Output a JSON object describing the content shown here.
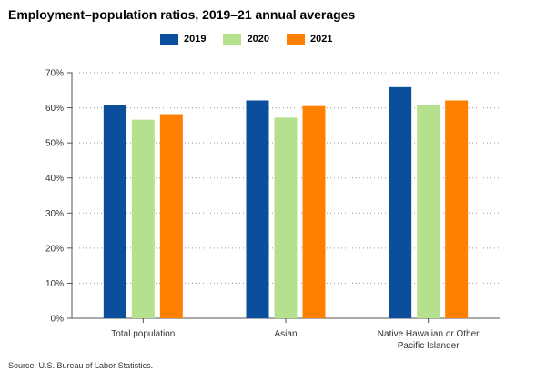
{
  "chart_data": {
    "type": "bar",
    "title": "Employment–population ratios, 2019–21 annual averages",
    "categories": [
      [
        "Total population"
      ],
      [
        "Asian"
      ],
      [
        "Native Hawaiian or Other",
        "Pacific Islander"
      ]
    ],
    "series": [
      {
        "name": "2019",
        "color": "#0b4f9c",
        "values": [
          60.8,
          62.1,
          65.9
        ]
      },
      {
        "name": "2020",
        "color": "#b5e08e",
        "values": [
          56.6,
          57.2,
          60.8
        ]
      },
      {
        "name": "2021",
        "color": "#ff8000",
        "values": [
          58.2,
          60.5,
          62.1
        ]
      }
    ],
    "ylim": [
      0,
      70
    ],
    "yticks": [
      0,
      10,
      20,
      30,
      40,
      50,
      60,
      70
    ],
    "ytick_suffix": "%",
    "grid": true,
    "legend_position": "top-center"
  },
  "source": "Source: U.S. Bureau of Labor Statistics."
}
